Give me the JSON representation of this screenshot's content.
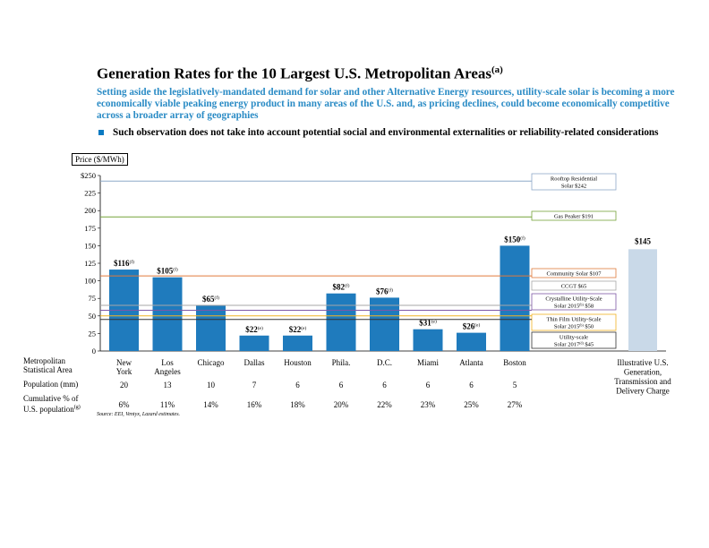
{
  "title": "Generation Rates for the 10 Largest U.S. Metropolitan Areas",
  "title_sup": "(a)",
  "subtitle": "Setting aside the legislatively-mandated demand for solar and other Alternative Energy resources, utility-scale solar is becoming a more economically viable peaking energy product in many areas of the U.S. and, as pricing declines, could become economically competitive across a broader array of geographies",
  "bullet": "Such observation does not take into account potential social and environmental externalities or reliability-related considerations",
  "row_labels": {
    "msa": [
      "Metropolitan",
      "Statistical Area"
    ],
    "population": "Population (mm)",
    "cumulative": [
      "Cumulative % of",
      "U.S. population"
    ],
    "cumulative_sup": "(g)"
  },
  "source": "Source:   EEI, Ventyx, Lazard estimates.",
  "colors": {
    "bar": "#1f7bbd",
    "illustrative_bar": "#c9d9e8",
    "title_blue": "#2a8bc5"
  },
  "chart_data": {
    "type": "bar",
    "ylabel": "Price ($/MWh)",
    "ylim": [
      0,
      250
    ],
    "yticks": [
      "$250",
      "225",
      "200",
      "175",
      "150",
      "125",
      "100",
      "75",
      "50",
      "25",
      "0"
    ],
    "bars": [
      {
        "category": [
          "New",
          "York"
        ],
        "value": 116,
        "label": "$116",
        "note": "(f)",
        "population": "20",
        "cumulative": "6%"
      },
      {
        "category": [
          "Los",
          "Angeles"
        ],
        "value": 105,
        "label": "$105",
        "note": "(f)",
        "population": "13",
        "cumulative": "11%"
      },
      {
        "category": [
          "Chicago"
        ],
        "value": 65,
        "label": "$65",
        "note": "(f)",
        "population": "10",
        "cumulative": "14%"
      },
      {
        "category": [
          "Dallas"
        ],
        "value": 22,
        "label": "$22",
        "note": "(e)",
        "population": "7",
        "cumulative": "16%"
      },
      {
        "category": [
          "Houston"
        ],
        "value": 22,
        "label": "$22",
        "note": "(e)",
        "population": "6",
        "cumulative": "18%"
      },
      {
        "category": [
          "Phila."
        ],
        "value": 82,
        "label": "$82",
        "note": "(f)",
        "population": "6",
        "cumulative": "20%"
      },
      {
        "category": [
          "D.C."
        ],
        "value": 76,
        "label": "$76",
        "note": "(f)",
        "population": "6",
        "cumulative": "22%"
      },
      {
        "category": [
          "Miami"
        ],
        "value": 31,
        "label": "$31",
        "note": "(e)",
        "population": "6",
        "cumulative": "23%"
      },
      {
        "category": [
          "Atlanta"
        ],
        "value": 26,
        "label": "$26",
        "note": "(e)",
        "population": "6",
        "cumulative": "25%"
      },
      {
        "category": [
          "Boston"
        ],
        "value": 150,
        "label": "$150",
        "note": "(f)",
        "population": "5",
        "cumulative": "27%"
      }
    ],
    "illustrative_bar": {
      "category": [
        "Illustrative U.S.",
        "Generation,",
        "Transmission and",
        "Delivery Charge"
      ],
      "value": 145,
      "label": "$145"
    },
    "reference_lines": [
      {
        "value": 242,
        "color": "#8ea9c9",
        "label_lines": [
          "Rooftop Residential",
          "Solar $242"
        ]
      },
      {
        "value": 191,
        "color": "#77a33a",
        "label_lines": [
          "Gas Peaker $191"
        ]
      },
      {
        "value": 107,
        "color": "#e07a3c",
        "label_lines": [
          "Community Solar $107"
        ]
      },
      {
        "value": 65,
        "color": "#a7a7a7",
        "label_lines": [
          "CCGT $65"
        ]
      },
      {
        "value": 58,
        "color": "#7e57a6",
        "label_lines": [
          "Crystalline Utility-Scale",
          "Solar 2015(b) $58"
        ]
      },
      {
        "value": 50,
        "color": "#f0b323",
        "label_lines": [
          "Thin Film Utility-Scale",
          "Solar 2015(b) $50"
        ]
      },
      {
        "value": 45,
        "color": "#333333",
        "label_lines": [
          "Utility-scale",
          "Solar 2017(d) $45"
        ]
      }
    ]
  }
}
